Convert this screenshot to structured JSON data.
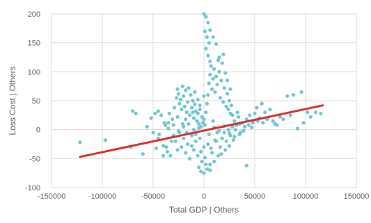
{
  "chart_data": {
    "type": "scatter",
    "title": "",
    "xlabel": "Total GDP | Others",
    "ylabel": "Loss Cost | Others",
    "xlim": [
      -150000,
      150000
    ],
    "ylim": [
      -100,
      200
    ],
    "x_ticks": [
      -150000,
      -100000,
      -50000,
      0,
      50000,
      100000,
      150000
    ],
    "x_tick_labels": [
      "-150000",
      "-100000",
      "-50000",
      "0",
      "50000",
      "100000",
      "150000"
    ],
    "y_ticks": [
      -100,
      -50,
      0,
      50,
      100,
      150,
      200
    ],
    "y_tick_labels": [
      "-100",
      "-50",
      "0",
      "50",
      "100",
      "150",
      "200"
    ],
    "grid": true,
    "legend": "none",
    "marker_color": "#6ec4cc",
    "trendline_color": "#d32a2a",
    "trendline": {
      "x": [
        -122000,
        117000
      ],
      "y": [
        -47,
        42
      ]
    },
    "series": [
      {
        "points": [
          [
            -122000,
            -22
          ],
          [
            -97000,
            -18
          ],
          [
            -72000,
            -30
          ],
          [
            -70000,
            32
          ],
          [
            -67000,
            28
          ],
          [
            -60000,
            -42
          ],
          [
            -56000,
            5
          ],
          [
            -52000,
            20
          ],
          [
            -48000,
            28
          ],
          [
            -45000,
            32
          ],
          [
            -42000,
            25
          ],
          [
            -40000,
            -28
          ],
          [
            -38000,
            8
          ],
          [
            -35000,
            12
          ],
          [
            -33000,
            -45
          ],
          [
            -31000,
            18
          ],
          [
            -29000,
            38
          ],
          [
            -27000,
            55
          ],
          [
            -26000,
            70
          ],
          [
            -25000,
            62
          ],
          [
            -24000,
            45
          ],
          [
            -23000,
            52
          ],
          [
            -22000,
            35
          ],
          [
            -21000,
            75
          ],
          [
            -20000,
            58
          ],
          [
            -19000,
            40
          ],
          [
            -18000,
            68
          ],
          [
            -17000,
            30
          ],
          [
            -16000,
            48
          ],
          [
            -15000,
            72
          ],
          [
            -14000,
            25
          ],
          [
            -13000,
            60
          ],
          [
            -12000,
            38
          ],
          [
            -11000,
            50
          ],
          [
            -10000,
            20
          ],
          [
            -9000,
            44
          ],
          [
            -8000,
            32
          ],
          [
            -7000,
            15
          ],
          [
            -6000,
            28
          ],
          [
            -5000,
            10
          ],
          [
            -4000,
            35
          ],
          [
            -3000,
            5
          ],
          [
            -2000,
            22
          ],
          [
            -1000,
            12
          ],
          [
            0,
            18
          ],
          [
            1000,
            8
          ],
          [
            2000,
            30
          ],
          [
            3000,
            45
          ],
          [
            4000,
            60
          ],
          [
            5000,
            80
          ],
          [
            6000,
            95
          ],
          [
            7000,
            110
          ],
          [
            8000,
            70
          ],
          [
            9000,
            88
          ],
          [
            10000,
            105
          ],
          [
            11000,
            65
          ],
          [
            12000,
            92
          ],
          [
            13000,
            78
          ],
          [
            14000,
            120
          ],
          [
            15000,
            100
          ],
          [
            16000,
            55
          ],
          [
            17000,
            85
          ],
          [
            18000,
            115
          ],
          [
            19000,
            48
          ],
          [
            20000,
            72
          ],
          [
            21000,
            98
          ],
          [
            22000,
            40
          ],
          [
            23000,
            62
          ],
          [
            24000,
            35
          ],
          [
            25000,
            50
          ],
          [
            26000,
            28
          ],
          [
            27000,
            42
          ],
          [
            0,
            200
          ],
          [
            2000,
            195
          ],
          [
            4000,
            185
          ],
          [
            1000,
            170
          ],
          [
            3000,
            160
          ],
          [
            5000,
            150
          ],
          [
            2000,
            140
          ],
          [
            4000,
            128
          ],
          [
            6000,
            118
          ],
          [
            30000,
            15
          ],
          [
            32000,
            8
          ],
          [
            34000,
            22
          ],
          [
            36000,
            -5
          ],
          [
            38000,
            12
          ],
          [
            40000,
            5
          ],
          [
            42000,
            18
          ],
          [
            45000,
            25
          ],
          [
            48000,
            12
          ],
          [
            50000,
            28
          ],
          [
            52000,
            38
          ],
          [
            55000,
            20
          ],
          [
            58000,
            12
          ],
          [
            60000,
            30
          ],
          [
            62000,
            18
          ],
          [
            65000,
            35
          ],
          [
            68000,
            15
          ],
          [
            70000,
            10
          ],
          [
            75000,
            22
          ],
          [
            82000,
            58
          ],
          [
            88000,
            60
          ],
          [
            92000,
            2
          ],
          [
            96000,
            65
          ],
          [
            98000,
            12
          ],
          [
            102000,
            30
          ],
          [
            105000,
            22
          ],
          [
            110000,
            30
          ],
          [
            115000,
            28
          ],
          [
            -30000,
            -10
          ],
          [
            -28000,
            -20
          ],
          [
            -26000,
            -35
          ],
          [
            -24000,
            -5
          ],
          [
            -22000,
            -30
          ],
          [
            -20000,
            -15
          ],
          [
            -18000,
            -40
          ],
          [
            -16000,
            -25
          ],
          [
            -14000,
            -50
          ],
          [
            -12000,
            -10
          ],
          [
            -10000,
            -35
          ],
          [
            -8000,
            -20
          ],
          [
            -6000,
            -45
          ],
          [
            -4000,
            -15
          ],
          [
            -2000,
            -55
          ],
          [
            0,
            -30
          ],
          [
            2000,
            -60
          ],
          [
            4000,
            -25
          ],
          [
            6000,
            -70
          ],
          [
            8000,
            -40
          ],
          [
            10000,
            -55
          ],
          [
            12000,
            -20
          ],
          [
            14000,
            -45
          ],
          [
            16000,
            -30
          ],
          [
            18000,
            -15
          ],
          [
            20000,
            -5
          ],
          [
            22000,
            -20
          ],
          [
            24000,
            0
          ],
          [
            26000,
            -10
          ],
          [
            28000,
            5
          ],
          [
            -5000,
            -65
          ],
          [
            -3000,
            -72
          ],
          [
            0,
            -75
          ],
          [
            3000,
            -68
          ],
          [
            6000,
            -60
          ],
          [
            42000,
            -62
          ],
          [
            -40000,
            -45
          ],
          [
            -36000,
            -38
          ],
          [
            -32000,
            -20
          ],
          [
            -45000,
            -15
          ],
          [
            -50000,
            -5
          ],
          [
            -35000,
            2
          ],
          [
            -30000,
            8
          ],
          [
            -25000,
            -2
          ],
          [
            -20000,
            5
          ],
          [
            -15000,
            10
          ],
          [
            -10000,
            0
          ],
          [
            -5000,
            3
          ],
          [
            5000,
            -8
          ],
          [
            10000,
            4
          ],
          [
            15000,
            -2
          ],
          [
            20000,
            6
          ],
          [
            25000,
            -6
          ],
          [
            30000,
            -12
          ],
          [
            35000,
            -8
          ],
          [
            33000,
            30
          ],
          [
            28000,
            25
          ],
          [
            -18000,
            18
          ],
          [
            -12000,
            -28
          ],
          [
            -8000,
            -8
          ],
          [
            -3000,
            -38
          ],
          [
            1000,
            -48
          ],
          [
            7000,
            -32
          ],
          [
            11000,
            -18
          ],
          [
            13000,
            -5
          ],
          [
            9000,
            15
          ],
          [
            -6000,
            52
          ],
          [
            -9000,
            65
          ],
          [
            -4000,
            42
          ],
          [
            0,
            58
          ],
          [
            -11000,
            30
          ],
          [
            -17000,
            -5
          ],
          [
            -21000,
            10
          ],
          [
            -26000,
            22
          ],
          [
            -34000,
            28
          ],
          [
            -39000,
            12
          ],
          [
            -44000,
            -8
          ],
          [
            -47000,
            -32
          ],
          [
            -37000,
            -30
          ],
          [
            17000,
            -42
          ],
          [
            21000,
            -35
          ],
          [
            25000,
            -28
          ],
          [
            29000,
            -18
          ],
          [
            31000,
            0
          ],
          [
            35000,
            10
          ],
          [
            39000,
            -2
          ],
          [
            44000,
            8
          ],
          [
            47000,
            4
          ],
          [
            53000,
            15
          ],
          [
            57000,
            45
          ],
          [
            63000,
            20
          ],
          [
            72000,
            8
          ],
          [
            78000,
            18
          ],
          [
            85000,
            25
          ],
          [
            23000,
            85
          ],
          [
            26000,
            70
          ],
          [
            19000,
            130
          ],
          [
            12000,
            148
          ],
          [
            15000,
            125
          ],
          [
            9000,
            160
          ],
          [
            6000,
            172
          ]
        ]
      }
    ]
  }
}
